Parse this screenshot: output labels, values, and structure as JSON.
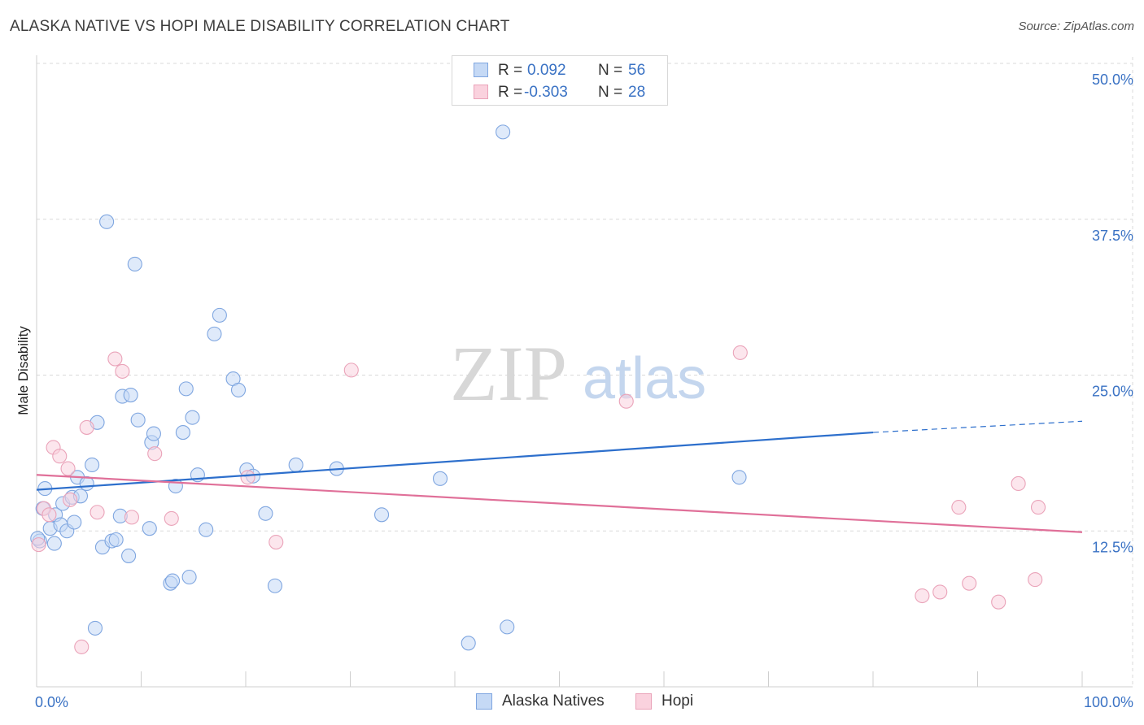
{
  "header": {
    "title": "ALASKA NATIVE VS HOPI MALE DISABILITY CORRELATION CHART",
    "source": "Source: ZipAtlas.com"
  },
  "watermark": {
    "zip": "ZIP",
    "atlas": "atlas"
  },
  "legend": {
    "r_label": "R =",
    "n_label": "N =",
    "series_a": {
      "r": "0.092",
      "n": "56"
    },
    "series_b": {
      "r": "-0.303",
      "n": "28"
    }
  },
  "bottom_legend": {
    "series_a": "Alaska Natives",
    "series_b": "Hopi"
  },
  "colors": {
    "series_a_fill": "#c5d9f5",
    "series_a_stroke": "#7fa6e0",
    "series_a_line": "#2d6fcc",
    "series_b_fill": "#fad2de",
    "series_b_stroke": "#eaa3b9",
    "series_b_line": "#e07099",
    "grid": "#d9d9d9",
    "axis_label": "#3a72c4"
  },
  "chart_data": {
    "type": "scatter",
    "title": "ALASKA NATIVE VS HOPI MALE DISABILITY CORRELATION CHART",
    "xlabel": "",
    "ylabel": "Male Disability",
    "xlim": [
      0,
      100
    ],
    "ylim": [
      0,
      50
    ],
    "x_tick_labels": [
      "0.0%",
      "100.0%"
    ],
    "y_ticks": [
      12.5,
      25.0,
      37.5,
      50.0
    ],
    "y_tick_labels": [
      "12.5%",
      "25.0%",
      "37.5%",
      "50.0%"
    ],
    "grid": true,
    "legend_position": "top-center",
    "series": [
      {
        "name": "Alaska Natives",
        "R": 0.092,
        "N": 56,
        "trend": {
          "x": [
            0,
            80
          ],
          "y": [
            15.8,
            20.4
          ],
          "dashed_to": [
            100,
            21.3
          ]
        },
        "points": [
          [
            0.3,
            11.7
          ],
          [
            0.6,
            14.3
          ],
          [
            0.8,
            15.9
          ],
          [
            1.3,
            12.7
          ],
          [
            1.7,
            11.5
          ],
          [
            1.8,
            13.8
          ],
          [
            2.3,
            13.0
          ],
          [
            2.5,
            14.7
          ],
          [
            2.9,
            12.5
          ],
          [
            3.4,
            15.2
          ],
          [
            3.6,
            13.2
          ],
          [
            3.9,
            16.8
          ],
          [
            4.2,
            15.3
          ],
          [
            4.8,
            16.3
          ],
          [
            5.3,
            17.8
          ],
          [
            5.6,
            4.7
          ],
          [
            5.8,
            21.2
          ],
          [
            6.3,
            11.2
          ],
          [
            6.7,
            37.3
          ],
          [
            7.2,
            11.7
          ],
          [
            7.6,
            11.8
          ],
          [
            8.0,
            13.7
          ],
          [
            8.2,
            23.3
          ],
          [
            8.8,
            10.5
          ],
          [
            9.0,
            23.4
          ],
          [
            9.4,
            33.9
          ],
          [
            9.7,
            21.4
          ],
          [
            10.8,
            12.7
          ],
          [
            11.0,
            19.6
          ],
          [
            11.2,
            20.3
          ],
          [
            12.8,
            8.3
          ],
          [
            13.0,
            8.5
          ],
          [
            13.3,
            16.1
          ],
          [
            14.0,
            20.4
          ],
          [
            14.3,
            23.9
          ],
          [
            14.6,
            8.8
          ],
          [
            14.9,
            21.6
          ],
          [
            15.4,
            17.0
          ],
          [
            16.2,
            12.6
          ],
          [
            17.0,
            28.3
          ],
          [
            17.5,
            29.8
          ],
          [
            18.8,
            24.7
          ],
          [
            19.3,
            23.8
          ],
          [
            20.1,
            17.4
          ],
          [
            20.7,
            16.9
          ],
          [
            21.9,
            13.9
          ],
          [
            22.8,
            8.1
          ],
          [
            24.8,
            17.8
          ],
          [
            28.7,
            17.5
          ],
          [
            33.0,
            13.8
          ],
          [
            38.6,
            16.7
          ],
          [
            41.3,
            3.5
          ],
          [
            44.6,
            44.5
          ],
          [
            45.0,
            4.8
          ],
          [
            67.2,
            16.8
          ],
          [
            0.1,
            11.9
          ]
        ]
      },
      {
        "name": "Hopi",
        "R": -0.303,
        "N": 28,
        "trend": {
          "x": [
            0,
            100
          ],
          "y": [
            17.0,
            12.4
          ]
        },
        "points": [
          [
            0.2,
            11.4
          ],
          [
            0.7,
            14.3
          ],
          [
            1.2,
            13.8
          ],
          [
            1.6,
            19.2
          ],
          [
            2.2,
            18.5
          ],
          [
            3.0,
            17.5
          ],
          [
            3.2,
            15.0
          ],
          [
            4.3,
            3.2
          ],
          [
            4.8,
            20.8
          ],
          [
            5.8,
            14.0
          ],
          [
            7.5,
            26.3
          ],
          [
            8.2,
            25.3
          ],
          [
            9.1,
            13.6
          ],
          [
            11.3,
            18.7
          ],
          [
            12.9,
            13.5
          ],
          [
            20.2,
            16.8
          ],
          [
            22.9,
            11.6
          ],
          [
            30.1,
            25.4
          ],
          [
            56.4,
            22.9
          ],
          [
            67.3,
            26.8
          ],
          [
            84.7,
            7.3
          ],
          [
            86.4,
            7.6
          ],
          [
            88.2,
            14.4
          ],
          [
            89.2,
            8.3
          ],
          [
            92.0,
            6.8
          ],
          [
            93.9,
            16.3
          ],
          [
            95.5,
            8.6
          ],
          [
            95.8,
            14.4
          ]
        ]
      }
    ]
  }
}
